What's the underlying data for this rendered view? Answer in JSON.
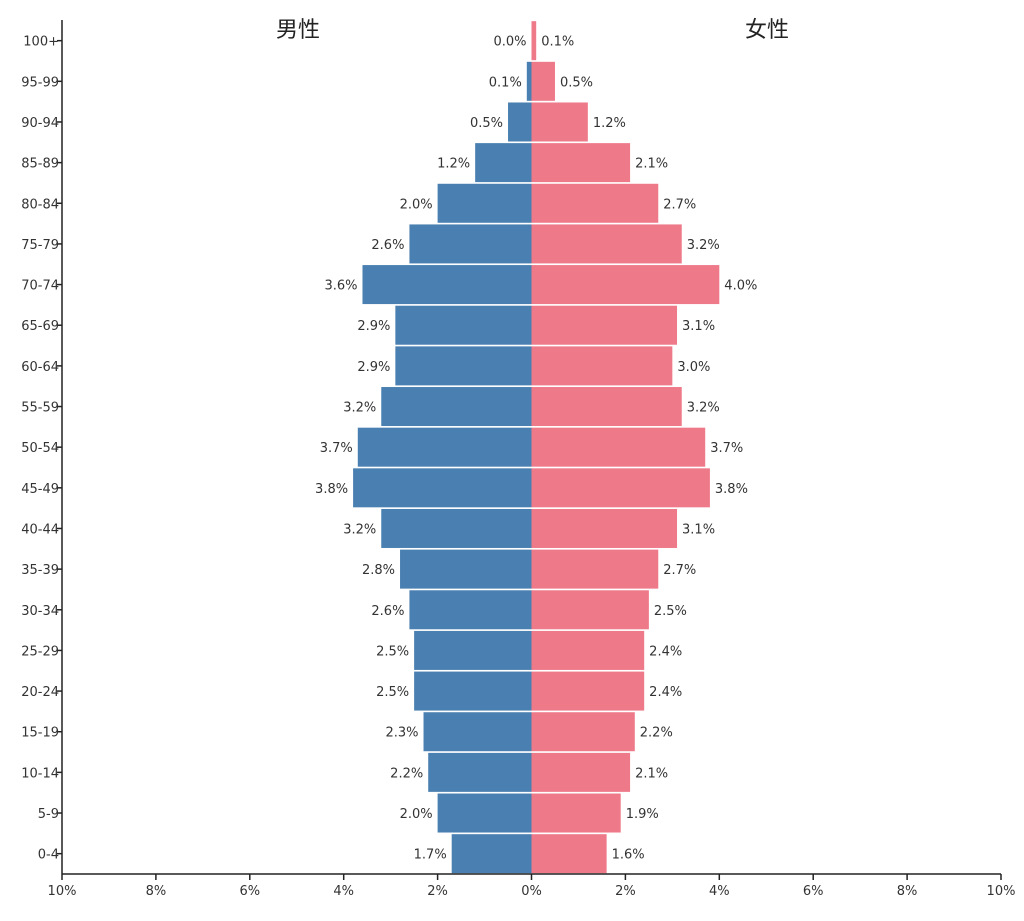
{
  "chart_data": {
    "type": "bar",
    "orientation": "horizontal-population-pyramid",
    "categories": [
      "0-4",
      "5-9",
      "10-14",
      "15-19",
      "20-24",
      "25-29",
      "30-34",
      "35-39",
      "40-44",
      "45-49",
      "50-54",
      "55-59",
      "60-64",
      "65-69",
      "70-74",
      "75-79",
      "80-84",
      "85-89",
      "90-94",
      "95-99",
      "100+"
    ],
    "series": [
      {
        "name": "男性",
        "color": "#4a80b1",
        "values": [
          1.7,
          2.0,
          2.2,
          2.3,
          2.5,
          2.5,
          2.6,
          2.8,
          3.2,
          3.8,
          3.7,
          3.2,
          2.9,
          2.9,
          3.6,
          2.6,
          2.0,
          1.2,
          0.5,
          0.1,
          0.0
        ],
        "labels": [
          "1.7%",
          "2.0%",
          "2.2%",
          "2.3%",
          "2.5%",
          "2.5%",
          "2.6%",
          "2.8%",
          "3.2%",
          "3.8%",
          "3.7%",
          "3.2%",
          "2.9%",
          "2.9%",
          "3.6%",
          "2.6%",
          "2.0%",
          "1.2%",
          "0.5%",
          "0.1%",
          "0.0%"
        ]
      },
      {
        "name": "女性",
        "color": "#ee7989",
        "values": [
          1.6,
          1.9,
          2.1,
          2.2,
          2.4,
          2.4,
          2.5,
          2.7,
          3.1,
          3.8,
          3.7,
          3.2,
          3.0,
          3.1,
          4.0,
          3.2,
          2.7,
          2.1,
          1.2,
          0.5,
          0.1
        ],
        "labels": [
          "1.6%",
          "1.9%",
          "2.1%",
          "2.2%",
          "2.4%",
          "2.4%",
          "2.5%",
          "2.7%",
          "3.1%",
          "3.8%",
          "3.7%",
          "3.2%",
          "3.0%",
          "3.1%",
          "4.0%",
          "3.2%",
          "2.7%",
          "2.1%",
          "1.2%",
          "0.5%",
          "0.1%"
        ]
      }
    ],
    "xlim": [
      -10,
      10
    ],
    "x_ticks": [
      -10,
      -8,
      -6,
      -4,
      -2,
      0,
      2,
      4,
      6,
      8,
      10
    ],
    "x_tick_labels": [
      "10%",
      "8%",
      "6%",
      "4%",
      "2%",
      "0%",
      "2%",
      "4%",
      "6%",
      "8%",
      "10%"
    ],
    "grid": false,
    "legend": "none"
  }
}
